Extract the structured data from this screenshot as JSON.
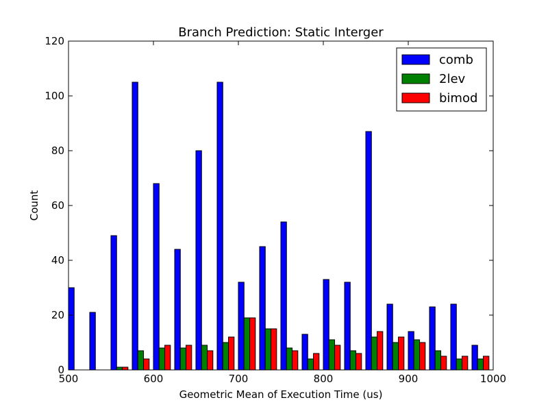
{
  "chart_data": {
    "type": "bar",
    "title": "Branch Prediction: Static Interger",
    "xlabel": "Geometric Mean of Execution Time (us)",
    "ylabel": "Count",
    "xlim": [
      500,
      1000
    ],
    "ylim": [
      0,
      120
    ],
    "xticks": [
      500,
      600,
      700,
      800,
      900,
      1000
    ],
    "yticks": [
      0,
      20,
      40,
      60,
      80,
      100,
      120
    ],
    "bin_edges": [
      500,
      525,
      550,
      575,
      600,
      625,
      650,
      675,
      700,
      725,
      750,
      775,
      800,
      825,
      850,
      875,
      900,
      925,
      950,
      975,
      1000
    ],
    "legend_position": "top-right",
    "grid": false,
    "series": [
      {
        "name": "comb",
        "color": "#0000ff",
        "values": [
          30,
          21,
          49,
          105,
          68,
          44,
          80,
          105,
          32,
          45,
          54,
          13,
          33,
          32,
          87,
          24,
          14,
          23,
          24,
          9
        ]
      },
      {
        "name": "2lev",
        "color": "#008000",
        "values": [
          0,
          0,
          1,
          7,
          8,
          8,
          9,
          10,
          19,
          15,
          8,
          4,
          11,
          7,
          12,
          10,
          11,
          7,
          4,
          4
        ]
      },
      {
        "name": "bimod",
        "color": "#ff0000",
        "values": [
          0,
          0,
          1,
          4,
          9,
          9,
          7,
          12,
          19,
          15,
          7,
          6,
          9,
          6,
          14,
          12,
          10,
          5,
          5,
          5
        ]
      }
    ]
  }
}
